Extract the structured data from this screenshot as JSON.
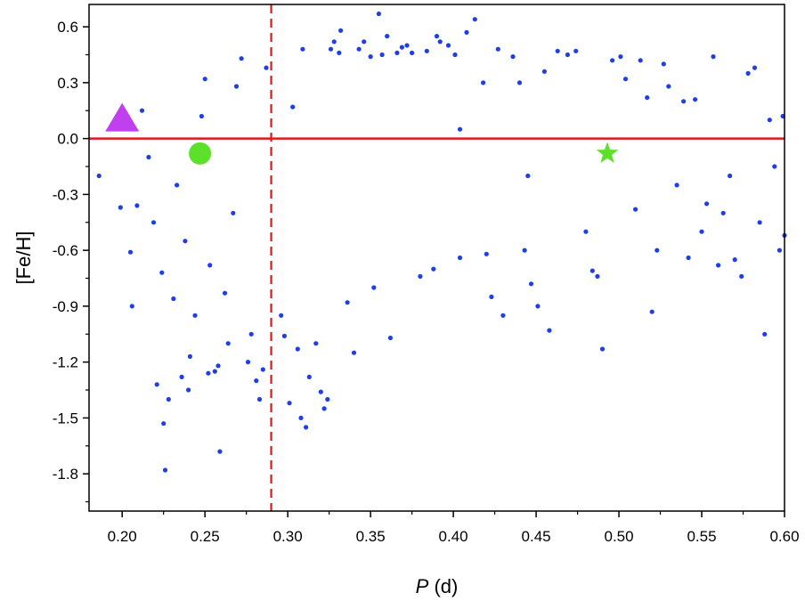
{
  "chart_data": {
    "type": "scatter",
    "xlabel_var": "P",
    "xlabel_unit": " (d)",
    "ylabel": "[Fe/H]",
    "xlim": [
      0.18,
      0.6
    ],
    "ylim": [
      -2.0,
      0.72
    ],
    "x_ticks": [
      0.2,
      0.25,
      0.3,
      0.35,
      0.4,
      0.45,
      0.5,
      0.55,
      0.6
    ],
    "x_tick_labels": [
      "0.20",
      "0.25",
      "0.30",
      "0.35",
      "0.40",
      "0.45",
      "0.50",
      "0.55",
      "0.60"
    ],
    "y_ticks": [
      0.6,
      0.3,
      0.0,
      -0.3,
      -0.6,
      -0.9,
      -1.2,
      -1.5,
      -1.8
    ],
    "y_tick_labels": [
      "0.6",
      "0.3",
      "0.0",
      "-0.3",
      "-0.6",
      "-0.9",
      "-1.2",
      "-1.5",
      "-1.8"
    ],
    "grid": false,
    "legend": "none",
    "reference_lines": {
      "horizontal_y": 0.0,
      "vertical_x": 0.29,
      "color": "#e8141b"
    },
    "colors": {
      "points": "#1f3fe6",
      "triangle": "#c040f0",
      "circle": "#5ce02a",
      "star": "#5ce02a"
    },
    "series": [
      {
        "marker": "dot",
        "points": [
          [
            0.186,
            -0.2
          ],
          [
            0.199,
            -0.37
          ],
          [
            0.205,
            -0.61
          ],
          [
            0.206,
            -0.9
          ],
          [
            0.209,
            -0.36
          ],
          [
            0.212,
            0.15
          ],
          [
            0.216,
            -0.1
          ],
          [
            0.219,
            -0.45
          ],
          [
            0.221,
            -1.32
          ],
          [
            0.224,
            -0.72
          ],
          [
            0.225,
            -1.53
          ],
          [
            0.226,
            -1.78
          ],
          [
            0.228,
            -1.4
          ],
          [
            0.231,
            -0.86
          ],
          [
            0.233,
            -0.25
          ],
          [
            0.236,
            -1.28
          ],
          [
            0.238,
            -0.55
          ],
          [
            0.24,
            -1.35
          ],
          [
            0.241,
            -1.17
          ],
          [
            0.244,
            -0.95
          ],
          [
            0.248,
            0.12
          ],
          [
            0.25,
            0.32
          ],
          [
            0.252,
            -1.26
          ],
          [
            0.253,
            -0.68
          ],
          [
            0.256,
            -1.25
          ],
          [
            0.258,
            -1.22
          ],
          [
            0.259,
            -1.68
          ],
          [
            0.262,
            -0.83
          ],
          [
            0.264,
            -1.1
          ],
          [
            0.267,
            -0.4
          ],
          [
            0.269,
            0.28
          ],
          [
            0.272,
            0.43
          ],
          [
            0.276,
            -1.2
          ],
          [
            0.278,
            -1.05
          ],
          [
            0.281,
            -1.3
          ],
          [
            0.283,
            -1.4
          ],
          [
            0.285,
            -1.24
          ],
          [
            0.287,
            0.38
          ],
          [
            0.296,
            -0.95
          ],
          [
            0.298,
            -1.06
          ],
          [
            0.301,
            -1.42
          ],
          [
            0.303,
            0.17
          ],
          [
            0.306,
            -1.13
          ],
          [
            0.308,
            -1.5
          ],
          [
            0.309,
            0.48
          ],
          [
            0.311,
            -1.55
          ],
          [
            0.313,
            -1.28
          ],
          [
            0.317,
            -1.1
          ],
          [
            0.32,
            -1.36
          ],
          [
            0.322,
            -1.45
          ],
          [
            0.324,
            -1.4
          ],
          [
            0.326,
            0.48
          ],
          [
            0.328,
            0.52
          ],
          [
            0.331,
            0.46
          ],
          [
            0.332,
            0.58
          ],
          [
            0.336,
            -0.88
          ],
          [
            0.34,
            -1.15
          ],
          [
            0.343,
            0.48
          ],
          [
            0.346,
            0.52
          ],
          [
            0.35,
            0.44
          ],
          [
            0.352,
            -0.8
          ],
          [
            0.357,
            0.45
          ],
          [
            0.36,
            0.55
          ],
          [
            0.362,
            -1.07
          ],
          [
            0.366,
            0.46
          ],
          [
            0.369,
            0.49
          ],
          [
            0.372,
            0.5
          ],
          [
            0.375,
            0.46
          ],
          [
            0.38,
            -0.74
          ],
          [
            0.384,
            0.47
          ],
          [
            0.388,
            -0.7
          ],
          [
            0.39,
            0.55
          ],
          [
            0.392,
            0.52
          ],
          [
            0.397,
            0.5
          ],
          [
            0.401,
            0.45
          ],
          [
            0.404,
            -0.64
          ],
          [
            0.408,
            0.57
          ],
          [
            0.413,
            0.64
          ],
          [
            0.418,
            0.3
          ],
          [
            0.42,
            -0.62
          ],
          [
            0.423,
            -0.85
          ],
          [
            0.427,
            0.48
          ],
          [
            0.43,
            -0.95
          ],
          [
            0.436,
            0.44
          ],
          [
            0.44,
            0.3
          ],
          [
            0.443,
            -0.6
          ],
          [
            0.447,
            -0.78
          ],
          [
            0.451,
            -0.9
          ],
          [
            0.455,
            0.36
          ],
          [
            0.458,
            -1.03
          ],
          [
            0.463,
            0.47
          ],
          [
            0.469,
            0.45
          ],
          [
            0.474,
            0.47
          ],
          [
            0.48,
            -0.5
          ],
          [
            0.484,
            -0.71
          ],
          [
            0.487,
            -0.74
          ],
          [
            0.49,
            -1.13
          ],
          [
            0.496,
            0.42
          ],
          [
            0.501,
            0.44
          ],
          [
            0.504,
            0.32
          ],
          [
            0.51,
            -0.38
          ],
          [
            0.513,
            0.42
          ],
          [
            0.517,
            0.22
          ],
          [
            0.52,
            -0.93
          ],
          [
            0.523,
            -0.6
          ],
          [
            0.527,
            0.4
          ],
          [
            0.53,
            0.28
          ],
          [
            0.535,
            -0.25
          ],
          [
            0.539,
            0.2
          ],
          [
            0.542,
            -0.64
          ],
          [
            0.546,
            0.21
          ],
          [
            0.55,
            -0.5
          ],
          [
            0.553,
            -0.35
          ],
          [
            0.557,
            0.44
          ],
          [
            0.56,
            -0.68
          ],
          [
            0.563,
            -0.4
          ],
          [
            0.567,
            -0.2
          ],
          [
            0.57,
            -0.65
          ],
          [
            0.574,
            -0.74
          ],
          [
            0.578,
            0.35
          ],
          [
            0.582,
            0.38
          ],
          [
            0.585,
            -0.45
          ],
          [
            0.588,
            -1.05
          ],
          [
            0.591,
            0.1
          ],
          [
            0.594,
            -0.15
          ],
          [
            0.597,
            -0.6
          ],
          [
            0.599,
            0.12
          ],
          [
            0.6,
            -0.52
          ],
          [
            0.355,
            0.67
          ],
          [
            0.404,
            0.05
          ],
          [
            0.445,
            -0.2
          ]
        ]
      },
      {
        "marker": "triangle",
        "points": [
          [
            0.2,
            0.11
          ]
        ]
      },
      {
        "marker": "circle",
        "points": [
          [
            0.247,
            -0.08
          ]
        ]
      },
      {
        "marker": "star",
        "points": [
          [
            0.493,
            -0.08
          ]
        ]
      }
    ]
  }
}
